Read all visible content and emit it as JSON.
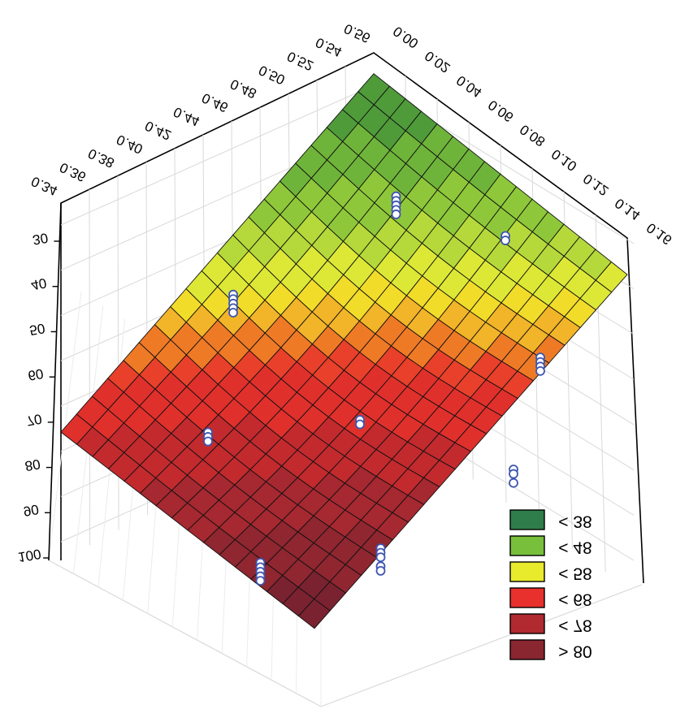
{
  "chart_data": {
    "type": "surface",
    "title": "",
    "axes": {
      "x_top": {
        "label": "",
        "ticks": [
          "0.34",
          "0.36",
          "0.38",
          "0.40",
          "0.42",
          "0.44",
          "0.46",
          "0.48",
          "0.50",
          "0.52",
          "0.54",
          "0.56"
        ]
      },
      "y_right": {
        "label": "",
        "ticks": [
          "0.00",
          "0.02",
          "0.04",
          "0.06",
          "0.08",
          "0.10",
          "0.12",
          "0.14",
          "0.16"
        ]
      },
      "z_vertical": {
        "label": "",
        "ticks": [
          "30",
          "40",
          "50",
          "60",
          "70",
          "80",
          "90",
          "100"
        ]
      }
    },
    "legend": {
      "placement": "bottom-right",
      "entries": [
        {
          "label": "< 38",
          "color": "#2e7d4a"
        },
        {
          "label": "< 48",
          "color": "#78c03c"
        },
        {
          "label": "< 58",
          "color": "#e8ea2c"
        },
        {
          "label": "< 68",
          "color": "#e8302c"
        },
        {
          "label": "< 78",
          "color": "#b02a30"
        },
        {
          "label": "> 80",
          "color": "#8a2630"
        }
      ]
    },
    "surface_corners": [
      {
        "x": 0.34,
        "y": 0.0,
        "z": 72
      },
      {
        "x": 0.56,
        "y": 0.0,
        "z": 26
      },
      {
        "x": 0.56,
        "y": 0.16,
        "z": 51
      },
      {
        "x": 0.34,
        "y": 0.16,
        "z": 96
      }
    ],
    "observed_points": [
      {
        "x": 0.41,
        "y": 0.03,
        "z": [
          79,
          80,
          81
        ]
      },
      {
        "x": 0.45,
        "y": 0.01,
        "z": [
          57,
          58,
          59,
          60,
          61
        ]
      },
      {
        "x": 0.52,
        "y": 0.05,
        "z": [
          41,
          42,
          43,
          44,
          45
        ]
      },
      {
        "x": 0.53,
        "y": 0.11,
        "z": [
          44,
          45
        ]
      },
      {
        "x": 0.45,
        "y": 0.09,
        "z": [
          75,
          76
        ]
      },
      {
        "x": 0.51,
        "y": 0.15,
        "z": [
          63,
          64,
          65,
          66
        ]
      },
      {
        "x": 0.38,
        "y": 0.09,
        "z": [
          96,
          97,
          98,
          99,
          100
        ]
      },
      {
        "x": 0.42,
        "y": 0.13,
        "z": [
          94,
          95,
          96,
          98,
          99
        ]
      },
      {
        "x": 0.48,
        "y": 0.16,
        "z": [
          82,
          83,
          85
        ]
      }
    ],
    "grid": true
  }
}
